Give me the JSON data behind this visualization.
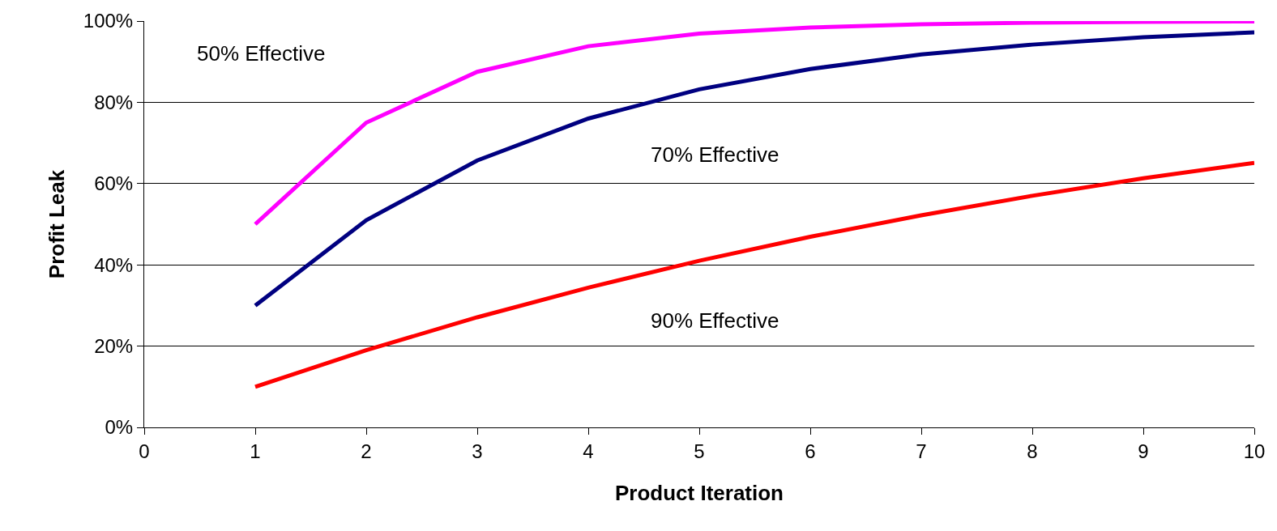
{
  "chart_data": {
    "type": "line",
    "xlabel": "Product Iteration",
    "ylabel": "Profit Leak",
    "x": [
      1,
      2,
      3,
      4,
      5,
      6,
      7,
      8,
      9,
      10
    ],
    "series": [
      {
        "color": "#ff00ff",
        "values": [
          50,
          75,
          87.5,
          93.8,
          96.9,
          98.4,
          99.2,
          99.6,
          99.8,
          99.9
        ]
      },
      {
        "color": "#000080",
        "values": [
          30,
          51,
          65.7,
          76,
          83.2,
          88.2,
          91.8,
          94.2,
          96,
          97.2
        ]
      },
      {
        "color": "#ff0000",
        "values": [
          10,
          19,
          27.1,
          34.4,
          41,
          46.9,
          52.2,
          57,
          61.3,
          65.1
        ]
      }
    ],
    "annotations": [
      "50% Effective",
      "70% Effective",
      "90% Effective"
    ],
    "xlim": [
      0,
      10
    ],
    "xticks": [
      0,
      1,
      2,
      3,
      4,
      5,
      6,
      7,
      8,
      9,
      10
    ],
    "ylim": [
      0,
      100
    ],
    "yticks": [
      {
        "value": 0,
        "label": "0%"
      },
      {
        "value": 20,
        "label": "20%"
      },
      {
        "value": 40,
        "label": "40%"
      },
      {
        "value": 60,
        "label": "60%"
      },
      {
        "value": 80,
        "label": "80%"
      },
      {
        "value": 100,
        "label": "100%"
      }
    ],
    "grid": "y",
    "marker": "none",
    "line_style": "solid"
  }
}
